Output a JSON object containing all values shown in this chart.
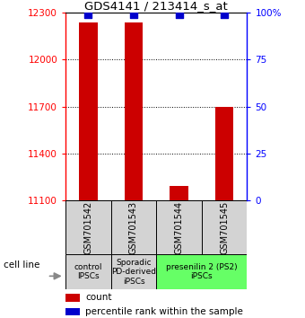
{
  "title": "GDS4141 / 213414_s_at",
  "samples": [
    "GSM701542",
    "GSM701543",
    "GSM701544",
    "GSM701545"
  ],
  "counts": [
    12240,
    12240,
    11190,
    11700
  ],
  "percentiles": [
    99,
    99,
    99,
    99
  ],
  "ylim": [
    11100,
    12300
  ],
  "yticks": [
    11100,
    11400,
    11700,
    12000,
    12300
  ],
  "ytick_labels": [
    "11100",
    "11400",
    "11700",
    "12000",
    "12300"
  ],
  "y2ticks": [
    0,
    25,
    50,
    75,
    100
  ],
  "y2tick_labels": [
    "0",
    "25",
    "50",
    "75",
    "100%"
  ],
  "bar_color": "#cc0000",
  "percentile_color": "#0000cc",
  "groups": [
    {
      "label": "control\nIPSCs",
      "color": "#d3d3d3",
      "samples": [
        0
      ]
    },
    {
      "label": "Sporadic\nPD-derived\niPSCs",
      "color": "#d3d3d3",
      "samples": [
        1
      ]
    },
    {
      "label": "presenilin 2 (PS2)\niPSCs",
      "color": "#66ff66",
      "samples": [
        2,
        3
      ]
    }
  ],
  "legend_count_label": "count",
  "legend_pct_label": "percentile rank within the sample",
  "cell_line_label": "cell line",
  "bar_width": 0.4,
  "dot_size": 30,
  "grid_yticks": [
    11400,
    11700,
    12000
  ]
}
